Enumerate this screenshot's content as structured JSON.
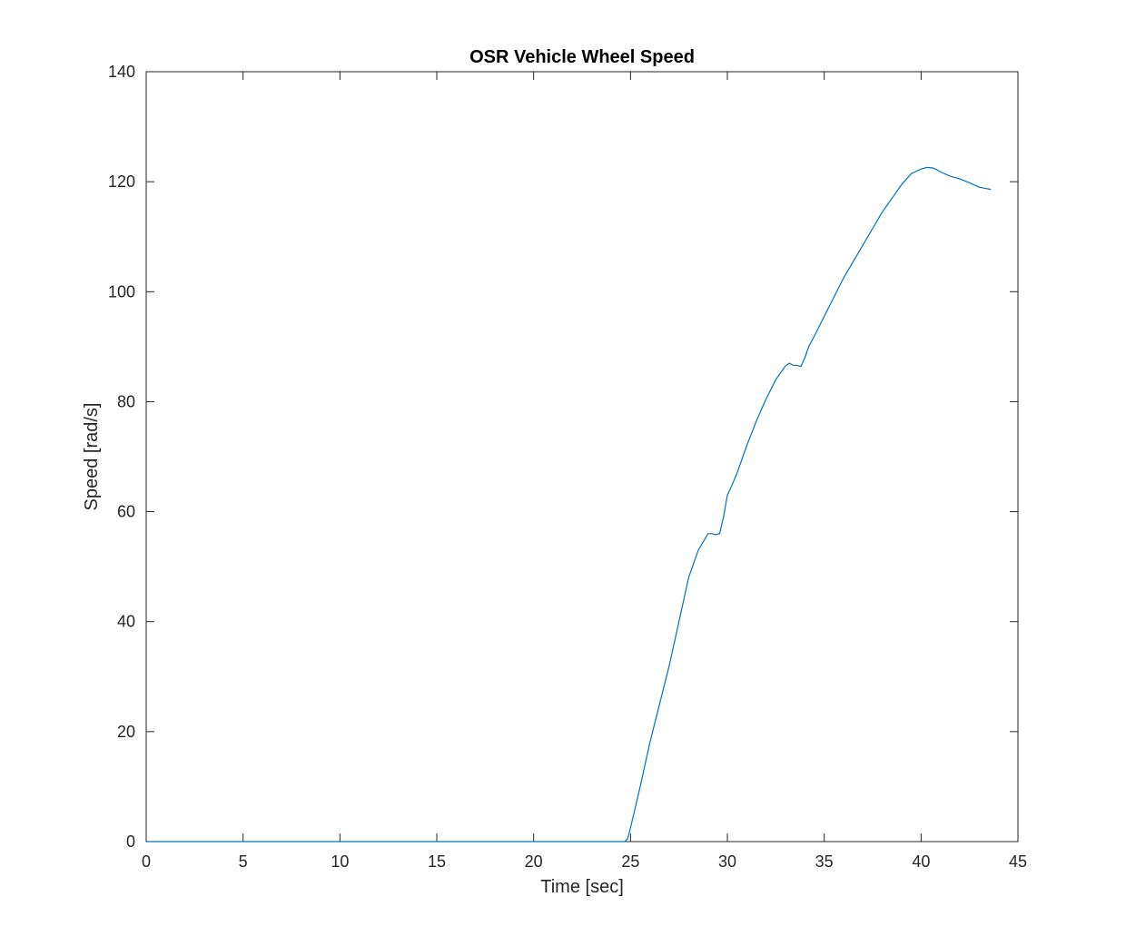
{
  "chart_data": {
    "type": "line",
    "title": "OSR Vehicle Wheel Speed",
    "xlabel": "Time [sec]",
    "ylabel": "Speed [rad/s]",
    "xlim": [
      0,
      45
    ],
    "ylim": [
      0,
      140
    ],
    "xticks": [
      0,
      5,
      10,
      15,
      20,
      25,
      30,
      35,
      40,
      45
    ],
    "yticks": [
      0,
      20,
      40,
      60,
      80,
      100,
      120,
      140
    ],
    "grid": false,
    "legend": "none",
    "line_color": "#0072BD",
    "series": [
      {
        "x": [
          0,
          10,
          20,
          24.7,
          24.85,
          25.0,
          25.5,
          26.0,
          26.5,
          27.0,
          27.5,
          28.0,
          28.5,
          29.0,
          29.2,
          29.4,
          29.6,
          29.8,
          30.0,
          30.2,
          30.5,
          31.0,
          31.5,
          32.0,
          32.5,
          33.0,
          33.2,
          33.4,
          33.6,
          33.8,
          34.0,
          34.2,
          34.5,
          35.0,
          35.5,
          36.0,
          36.5,
          37.0,
          37.5,
          38.0,
          38.5,
          39.0,
          39.5,
          40.0,
          40.3,
          40.6,
          40.8,
          41.0,
          41.5,
          42.0,
          42.5,
          43.0,
          43.3,
          43.6
        ],
        "y": [
          0,
          0,
          0,
          0,
          0.5,
          2.5,
          10,
          18,
          25,
          32,
          40,
          48,
          53,
          56,
          56,
          55.8,
          56,
          59,
          63,
          64.5,
          67,
          72,
          76.5,
          80.5,
          84,
          86.5,
          87,
          86.6,
          86.6,
          86.4,
          88,
          90,
          92,
          95.5,
          99,
          102.5,
          105.5,
          108.5,
          111.5,
          114.5,
          117,
          119.5,
          121.5,
          122.3,
          122.6,
          122.5,
          122.2,
          121.8,
          121,
          120.5,
          119.8,
          119,
          118.8,
          118.6
        ]
      }
    ]
  }
}
